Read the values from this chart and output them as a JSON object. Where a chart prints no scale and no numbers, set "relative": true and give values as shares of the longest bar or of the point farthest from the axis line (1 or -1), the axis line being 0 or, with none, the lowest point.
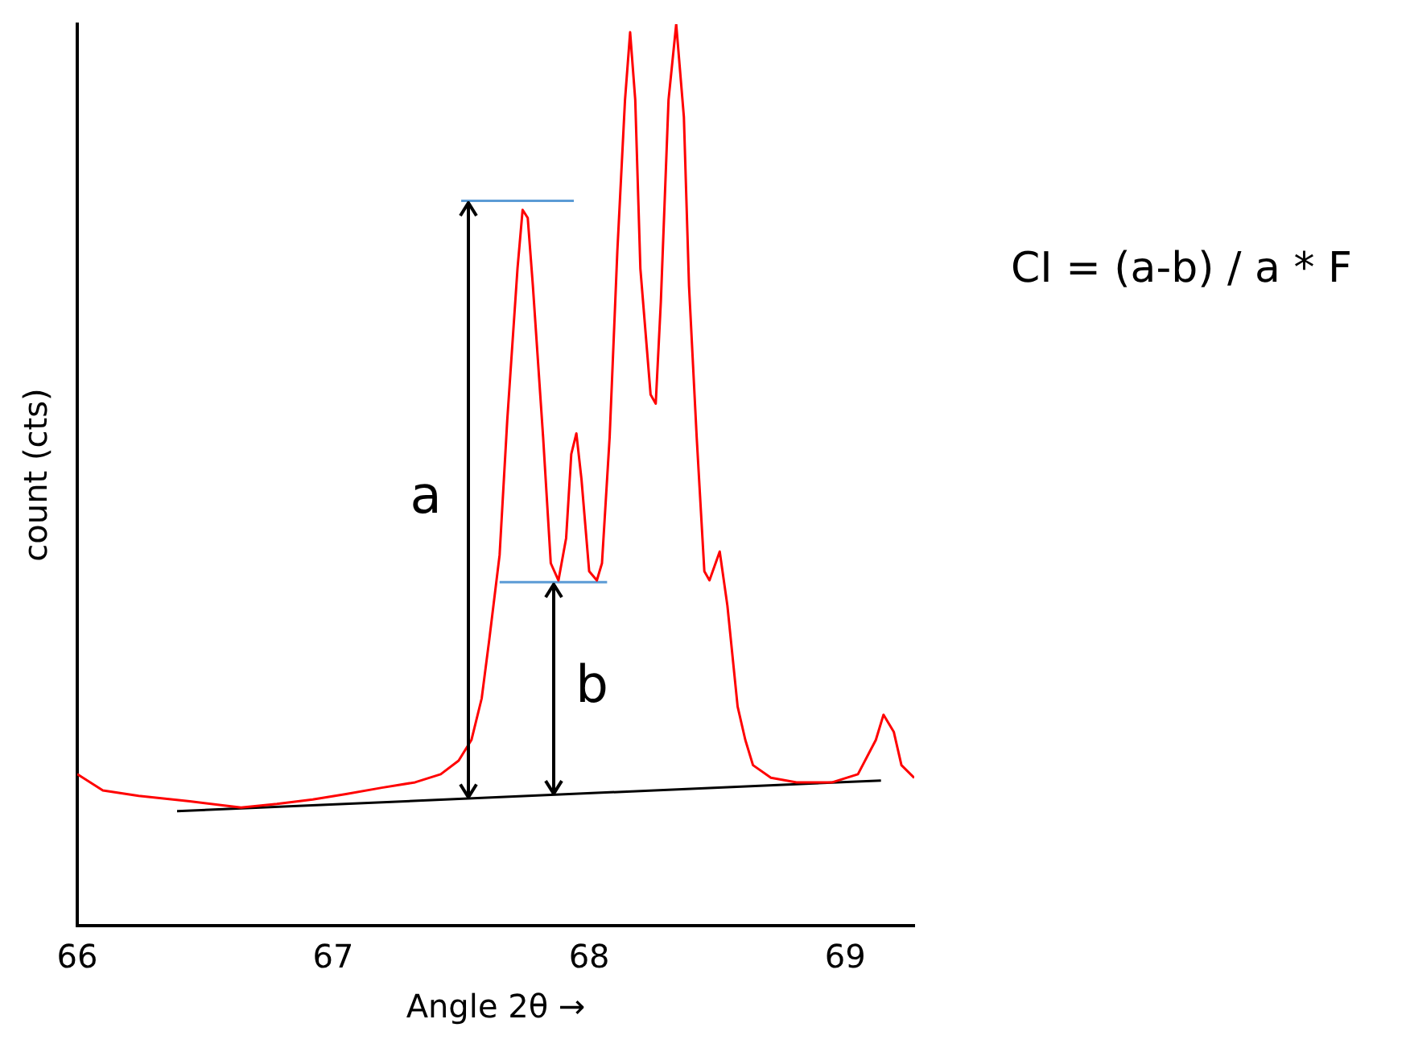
{
  "chart_data": {
    "type": "line",
    "relative": true,
    "xlabel": "Angle 2θ →",
    "ylabel": "count (cts)",
    "xlim": [
      66,
      69.27
    ],
    "xticks": [
      66,
      67,
      68,
      69
    ],
    "grid": false,
    "legend": false,
    "marker": "none",
    "series": [
      {
        "color": "#ff0000",
        "x": [
          66.0,
          66.1,
          66.24,
          66.44,
          66.64,
          66.78,
          66.92,
          67.05,
          67.19,
          67.32,
          67.42,
          67.49,
          67.54,
          67.58,
          67.61,
          67.65,
          67.68,
          67.72,
          67.74,
          67.76,
          67.78,
          67.82,
          67.85,
          67.88,
          67.91,
          67.93,
          67.95,
          67.97,
          68.0,
          68.03,
          68.05,
          68.08,
          68.11,
          68.14,
          68.16,
          68.18,
          68.2,
          68.24,
          68.26,
          68.28,
          68.31,
          68.34,
          68.37,
          68.39,
          68.42,
          68.45,
          68.47,
          68.51,
          68.54,
          68.58,
          68.61,
          68.64,
          68.71,
          68.81,
          68.95,
          69.05,
          69.12,
          69.15,
          69.19,
          69.22,
          69.27
        ],
        "values": [
          0.168,
          0.15,
          0.144,
          0.138,
          0.131,
          0.135,
          0.14,
          0.146,
          0.153,
          0.159,
          0.168,
          0.183,
          0.206,
          0.252,
          0.318,
          0.411,
          0.561,
          0.729,
          0.794,
          0.785,
          0.71,
          0.542,
          0.402,
          0.383,
          0.43,
          0.523,
          0.546,
          0.495,
          0.393,
          0.383,
          0.402,
          0.542,
          0.748,
          0.916,
          0.991,
          0.916,
          0.729,
          0.589,
          0.579,
          0.692,
          0.916,
          1.0,
          0.897,
          0.71,
          0.542,
          0.393,
          0.383,
          0.415,
          0.355,
          0.243,
          0.206,
          0.178,
          0.164,
          0.159,
          0.159,
          0.168,
          0.206,
          0.234,
          0.215,
          0.178,
          0.164
        ]
      },
      {
        "type": "line",
        "color": "#5b9bd5",
        "x": [
          67.5,
          67.94
        ],
        "values": [
          0.804,
          0.804
        ]
      },
      {
        "type": "line",
        "color": "#5b9bd5",
        "x": [
          67.65,
          68.07
        ],
        "values": [
          0.381,
          0.381
        ]
      },
      {
        "type": "line",
        "color": "#000000",
        "x": [
          66.39,
          69.14
        ],
        "values": [
          0.127,
          0.161
        ]
      }
    ],
    "annotations": [
      "a",
      "b",
      "CI = (a-b) / a * F"
    ]
  }
}
